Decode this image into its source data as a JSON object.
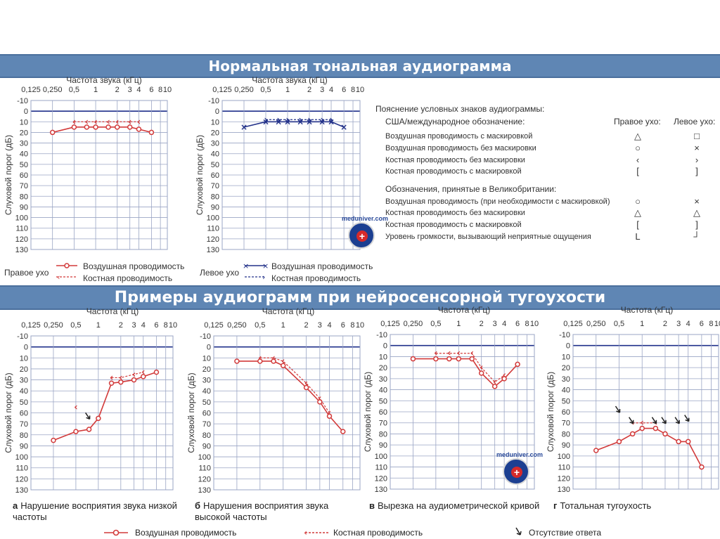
{
  "banners": {
    "top": "Нормальная тональная аудиограмма",
    "middle": "Примеры аудиограмм при нейросенсорной тугоухости"
  },
  "axes": {
    "freq_title_top": "Частота звука (кГц)",
    "freq_title_bottom": "Частота (кГц)",
    "y_title": "Слуховой порог (дБ)",
    "x_ticks": [
      "0,125",
      "0,250",
      "0,5",
      "1",
      "2",
      "3",
      "4",
      "6",
      "8",
      "10"
    ],
    "y_ticks": [
      "-10",
      "0",
      "10",
      "20",
      "30",
      "40",
      "50",
      "60",
      "70",
      "80",
      "90",
      "100",
      "110",
      "120",
      "130"
    ]
  },
  "colors": {
    "banner": "#5f86b4",
    "red": "#d23a3a",
    "blue": "#23328a",
    "grid": "#9aa5c4",
    "zero": "#1f2f8a"
  },
  "top_legends": {
    "right_ear": "Правое ухо",
    "left_ear": "Левое ухо",
    "air": "Воздушная проводимость",
    "bone": "Костная проводимость"
  },
  "key": {
    "title": "Пояснение условных знаков аудиограммы:",
    "us_title": "США/международное обозначение:",
    "right_col": "Правое ухо:",
    "left_col": "Левое ухо:",
    "us_rows": [
      {
        "label": "Воздушная проводимость с маскировкой",
        "right": "△",
        "left": "□"
      },
      {
        "label": "Воздушная проводимость без маскировки",
        "right": "○",
        "left": "×"
      },
      {
        "label": "Костная проводимость без маскировки",
        "right": "‹",
        "left": "›"
      },
      {
        "label": "Костная проводимость с маскировкой",
        "right": "[",
        "left": "]"
      }
    ],
    "uk_title": "Обозначения, принятые в Великобритании:",
    "uk_rows": [
      {
        "label": "Воздушная проводимость (при необходимости с маскировкой)",
        "right": "○",
        "left": "×"
      },
      {
        "label": "Костная проводимость без маскировки",
        "right": "△",
        "left": "△"
      },
      {
        "label": "Костная проводимость с маскировкой",
        "right": "[",
        "left": "]"
      },
      {
        "label": "Уровень громкости, вызывающий неприятные ощущения",
        "right": "L",
        "left": "┘"
      }
    ]
  },
  "logo": {
    "site": "meduniver.com"
  },
  "captions": [
    {
      "letter": "а",
      "text": "Нарушение восприятия звука низкой частоты"
    },
    {
      "letter": "б",
      "text": "Нарушения восприятия звука высокой частоты"
    },
    {
      "letter": "в",
      "text": "Вырезка на аудиометрической кривой"
    },
    {
      "letter": "г",
      "text": "Тотальная тугоухость"
    }
  ],
  "bottom_legend": {
    "air": "Воздушная проводимость",
    "bone": "Костная проводимость",
    "no_response": "Отсутствие ответа"
  },
  "chart_data": [
    {
      "id": "normal-right",
      "type": "line",
      "ylim": [
        -10,
        130
      ],
      "y_inverted": true,
      "x_scale": "log",
      "x_unit": "кГц",
      "series": [
        {
          "name": "Воздушная проводимость",
          "color": "#d23a3a",
          "marker": "circle",
          "x": [
            0.25,
            0.5,
            0.75,
            1,
            1.5,
            2,
            3,
            4,
            6
          ],
          "y": [
            20,
            15,
            15,
            15,
            15,
            15,
            15,
            17,
            20
          ]
        },
        {
          "name": "Костная проводимость",
          "color": "#d23a3a",
          "marker": "lt",
          "dashed": true,
          "x": [
            0.5,
            0.75,
            1,
            1.5,
            2,
            3,
            4
          ],
          "y": [
            10,
            10,
            10,
            10,
            10,
            10,
            10
          ]
        }
      ]
    },
    {
      "id": "normal-left",
      "type": "line",
      "ylim": [
        -10,
        130
      ],
      "y_inverted": true,
      "x_scale": "log",
      "x_unit": "кГц",
      "series": [
        {
          "name": "Воздушная проводимость",
          "color": "#23328a",
          "marker": "x",
          "x": [
            0.25,
            0.5,
            0.75,
            1,
            1.5,
            2,
            3,
            4,
            6
          ],
          "y": [
            15,
            10,
            10,
            10,
            10,
            10,
            10,
            10,
            15
          ]
        },
        {
          "name": "Костная проводимость",
          "color": "#23328a",
          "marker": "gt",
          "dashed": true,
          "x": [
            0.5,
            0.75,
            1,
            1.5,
            2,
            3,
            4
          ],
          "y": [
            8,
            8,
            8,
            8,
            8,
            8,
            8
          ]
        }
      ]
    },
    {
      "id": "example-a",
      "type": "line",
      "ylim": [
        -10,
        130
      ],
      "y_inverted": true,
      "x_scale": "log",
      "x_unit": "кГц",
      "series": [
        {
          "name": "Воздушная проводимость",
          "color": "#d23a3a",
          "marker": "circle",
          "x": [
            0.25,
            0.5,
            0.75,
            1,
            1.5,
            2,
            3,
            4,
            6
          ],
          "y": [
            85,
            77,
            75,
            65,
            33,
            32,
            30,
            27,
            23
          ]
        },
        {
          "name": "Костная проводимость",
          "color": "#d23a3a",
          "marker": "lt",
          "dashed": true,
          "x": [
            1.5,
            2,
            3,
            4
          ],
          "y": [
            28,
            28,
            25,
            23
          ]
        }
      ],
      "bone_isolated": [
        {
          "x": 0.5,
          "y": 55
        }
      ],
      "no_response": [
        {
          "x": 0.75,
          "y": 65
        }
      ]
    },
    {
      "id": "example-b",
      "type": "line",
      "ylim": [
        -10,
        130
      ],
      "y_inverted": true,
      "x_scale": "log",
      "x_unit": "кГц",
      "series": [
        {
          "name": "Воздушная проводимость",
          "color": "#d23a3a",
          "marker": "circle",
          "x": [
            0.25,
            0.5,
            0.75,
            1,
            2,
            3,
            4,
            6
          ],
          "y": [
            13,
            13,
            13,
            17,
            37,
            50,
            63,
            77
          ]
        },
        {
          "name": "Костная проводимость",
          "color": "#d23a3a",
          "marker": "lt",
          "dashed": true,
          "x": [
            0.5,
            0.75,
            1,
            2,
            3,
            4
          ],
          "y": [
            10,
            10,
            13,
            33,
            47,
            60
          ]
        }
      ]
    },
    {
      "id": "example-c",
      "type": "line",
      "ylim": [
        -10,
        130
      ],
      "y_inverted": true,
      "x_scale": "log",
      "x_unit": "кГц",
      "series": [
        {
          "name": "Воздушная проводимость",
          "color": "#d23a3a",
          "marker": "circle",
          "x": [
            0.25,
            0.5,
            0.75,
            1,
            1.5,
            2,
            3,
            4,
            6
          ],
          "y": [
            12,
            12,
            12,
            12,
            12,
            25,
            37,
            30,
            17
          ]
        },
        {
          "name": "Костная проводимость",
          "color": "#d23a3a",
          "marker": "lt",
          "dashed": true,
          "x": [
            0.5,
            0.75,
            1,
            1.5,
            2,
            3,
            4
          ],
          "y": [
            7,
            7,
            7,
            7,
            20,
            33,
            27
          ]
        }
      ]
    },
    {
      "id": "example-d",
      "type": "line",
      "ylim": [
        -10,
        130
      ],
      "y_inverted": true,
      "x_scale": "log",
      "x_unit": "кГц",
      "series": [
        {
          "name": "Воздушная проводимость",
          "color": "#d23a3a",
          "marker": "circle",
          "x": [
            0.25,
            0.5,
            0.75,
            1,
            1.5,
            2,
            3,
            4,
            6
          ],
          "y": [
            95,
            87,
            80,
            75,
            75,
            80,
            87,
            87,
            110
          ]
        },
        {
          "name": "Костная проводимость",
          "color": "#d23a3a",
          "marker": "lt",
          "dashed": true,
          "x": [
            0.75,
            1,
            1.5
          ],
          "y": [
            70,
            70,
            70
          ]
        }
      ],
      "no_response": [
        {
          "x": 0.5,
          "y": 60
        },
        {
          "x": 0.75,
          "y": 70
        },
        {
          "x": 1.5,
          "y": 70
        },
        {
          "x": 2,
          "y": 70
        },
        {
          "x": 3,
          "y": 70
        },
        {
          "x": 4,
          "y": 68
        }
      ]
    }
  ]
}
